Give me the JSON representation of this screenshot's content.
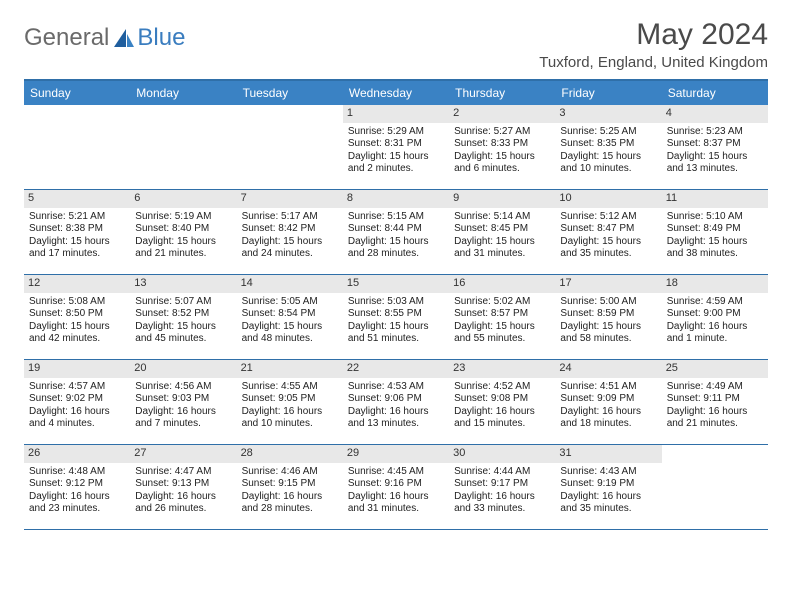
{
  "logo": {
    "text1": "General",
    "text2": "Blue"
  },
  "title": "May 2024",
  "location": "Tuxford, England, United Kingdom",
  "colors": {
    "header_bg": "#3a82c4",
    "header_border": "#2f6fa8",
    "daynum_bg": "#e8e8e8",
    "logo_gray": "#6a6a6a",
    "logo_blue": "#3a7dbf"
  },
  "day_labels": [
    "Sunday",
    "Monday",
    "Tuesday",
    "Wednesday",
    "Thursday",
    "Friday",
    "Saturday"
  ],
  "weeks": [
    [
      {
        "n": "",
        "sr": "",
        "ss": "",
        "dl": ""
      },
      {
        "n": "",
        "sr": "",
        "ss": "",
        "dl": ""
      },
      {
        "n": "",
        "sr": "",
        "ss": "",
        "dl": ""
      },
      {
        "n": "1",
        "sr": "Sunrise: 5:29 AM",
        "ss": "Sunset: 8:31 PM",
        "dl": "Daylight: 15 hours and 2 minutes."
      },
      {
        "n": "2",
        "sr": "Sunrise: 5:27 AM",
        "ss": "Sunset: 8:33 PM",
        "dl": "Daylight: 15 hours and 6 minutes."
      },
      {
        "n": "3",
        "sr": "Sunrise: 5:25 AM",
        "ss": "Sunset: 8:35 PM",
        "dl": "Daylight: 15 hours and 10 minutes."
      },
      {
        "n": "4",
        "sr": "Sunrise: 5:23 AM",
        "ss": "Sunset: 8:37 PM",
        "dl": "Daylight: 15 hours and 13 minutes."
      }
    ],
    [
      {
        "n": "5",
        "sr": "Sunrise: 5:21 AM",
        "ss": "Sunset: 8:38 PM",
        "dl": "Daylight: 15 hours and 17 minutes."
      },
      {
        "n": "6",
        "sr": "Sunrise: 5:19 AM",
        "ss": "Sunset: 8:40 PM",
        "dl": "Daylight: 15 hours and 21 minutes."
      },
      {
        "n": "7",
        "sr": "Sunrise: 5:17 AM",
        "ss": "Sunset: 8:42 PM",
        "dl": "Daylight: 15 hours and 24 minutes."
      },
      {
        "n": "8",
        "sr": "Sunrise: 5:15 AM",
        "ss": "Sunset: 8:44 PM",
        "dl": "Daylight: 15 hours and 28 minutes."
      },
      {
        "n": "9",
        "sr": "Sunrise: 5:14 AM",
        "ss": "Sunset: 8:45 PM",
        "dl": "Daylight: 15 hours and 31 minutes."
      },
      {
        "n": "10",
        "sr": "Sunrise: 5:12 AM",
        "ss": "Sunset: 8:47 PM",
        "dl": "Daylight: 15 hours and 35 minutes."
      },
      {
        "n": "11",
        "sr": "Sunrise: 5:10 AM",
        "ss": "Sunset: 8:49 PM",
        "dl": "Daylight: 15 hours and 38 minutes."
      }
    ],
    [
      {
        "n": "12",
        "sr": "Sunrise: 5:08 AM",
        "ss": "Sunset: 8:50 PM",
        "dl": "Daylight: 15 hours and 42 minutes."
      },
      {
        "n": "13",
        "sr": "Sunrise: 5:07 AM",
        "ss": "Sunset: 8:52 PM",
        "dl": "Daylight: 15 hours and 45 minutes."
      },
      {
        "n": "14",
        "sr": "Sunrise: 5:05 AM",
        "ss": "Sunset: 8:54 PM",
        "dl": "Daylight: 15 hours and 48 minutes."
      },
      {
        "n": "15",
        "sr": "Sunrise: 5:03 AM",
        "ss": "Sunset: 8:55 PM",
        "dl": "Daylight: 15 hours and 51 minutes."
      },
      {
        "n": "16",
        "sr": "Sunrise: 5:02 AM",
        "ss": "Sunset: 8:57 PM",
        "dl": "Daylight: 15 hours and 55 minutes."
      },
      {
        "n": "17",
        "sr": "Sunrise: 5:00 AM",
        "ss": "Sunset: 8:59 PM",
        "dl": "Daylight: 15 hours and 58 minutes."
      },
      {
        "n": "18",
        "sr": "Sunrise: 4:59 AM",
        "ss": "Sunset: 9:00 PM",
        "dl": "Daylight: 16 hours and 1 minute."
      }
    ],
    [
      {
        "n": "19",
        "sr": "Sunrise: 4:57 AM",
        "ss": "Sunset: 9:02 PM",
        "dl": "Daylight: 16 hours and 4 minutes."
      },
      {
        "n": "20",
        "sr": "Sunrise: 4:56 AM",
        "ss": "Sunset: 9:03 PM",
        "dl": "Daylight: 16 hours and 7 minutes."
      },
      {
        "n": "21",
        "sr": "Sunrise: 4:55 AM",
        "ss": "Sunset: 9:05 PM",
        "dl": "Daylight: 16 hours and 10 minutes."
      },
      {
        "n": "22",
        "sr": "Sunrise: 4:53 AM",
        "ss": "Sunset: 9:06 PM",
        "dl": "Daylight: 16 hours and 13 minutes."
      },
      {
        "n": "23",
        "sr": "Sunrise: 4:52 AM",
        "ss": "Sunset: 9:08 PM",
        "dl": "Daylight: 16 hours and 15 minutes."
      },
      {
        "n": "24",
        "sr": "Sunrise: 4:51 AM",
        "ss": "Sunset: 9:09 PM",
        "dl": "Daylight: 16 hours and 18 minutes."
      },
      {
        "n": "25",
        "sr": "Sunrise: 4:49 AM",
        "ss": "Sunset: 9:11 PM",
        "dl": "Daylight: 16 hours and 21 minutes."
      }
    ],
    [
      {
        "n": "26",
        "sr": "Sunrise: 4:48 AM",
        "ss": "Sunset: 9:12 PM",
        "dl": "Daylight: 16 hours and 23 minutes."
      },
      {
        "n": "27",
        "sr": "Sunrise: 4:47 AM",
        "ss": "Sunset: 9:13 PM",
        "dl": "Daylight: 16 hours and 26 minutes."
      },
      {
        "n": "28",
        "sr": "Sunrise: 4:46 AM",
        "ss": "Sunset: 9:15 PM",
        "dl": "Daylight: 16 hours and 28 minutes."
      },
      {
        "n": "29",
        "sr": "Sunrise: 4:45 AM",
        "ss": "Sunset: 9:16 PM",
        "dl": "Daylight: 16 hours and 31 minutes."
      },
      {
        "n": "30",
        "sr": "Sunrise: 4:44 AM",
        "ss": "Sunset: 9:17 PM",
        "dl": "Daylight: 16 hours and 33 minutes."
      },
      {
        "n": "31",
        "sr": "Sunrise: 4:43 AM",
        "ss": "Sunset: 9:19 PM",
        "dl": "Daylight: 16 hours and 35 minutes."
      },
      {
        "n": "",
        "sr": "",
        "ss": "",
        "dl": ""
      }
    ]
  ]
}
